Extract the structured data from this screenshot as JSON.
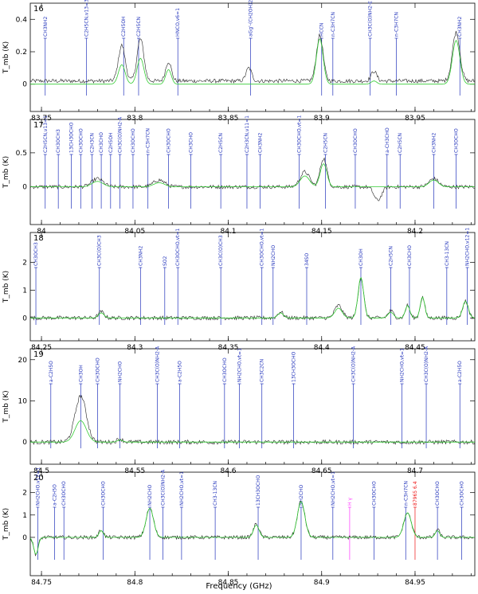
{
  "chart_data": {
    "type": "line",
    "xlabel": "Frequency (GHz)",
    "ylabel": "T_mb (K)",
    "panels": [
      {
        "number": "16",
        "xlim": [
          83.744,
          83.982
        ],
        "ylim": [
          -0.07,
          0.47
        ],
        "xticks": [
          83.75,
          83.8,
          83.85,
          83.9,
          83.95
        ],
        "xticklabels": [
          "83.75",
          "83.8",
          "83.85",
          "83.9",
          "83.95"
        ],
        "yticks": [
          0,
          0.2,
          0.4
        ],
        "yticklabels": [
          "0",
          "0.2",
          "0.4"
        ],
        "baseline_obs": 0.02,
        "baseline_model": 0.0,
        "peaks": [
          {
            "x": 83.793,
            "obs": 0.22,
            "model": 0.12,
            "w": 0.0018
          },
          {
            "x": 83.803,
            "obs": 0.26,
            "model": 0.16,
            "w": 0.0018
          },
          {
            "x": 83.818,
            "obs": 0.12,
            "model": 0.09,
            "w": 0.0015
          },
          {
            "x": 83.861,
            "obs": 0.08,
            "model": 0.0,
            "w": 0.0015
          },
          {
            "x": 83.899,
            "obs": 0.28,
            "model": 0.28,
            "w": 0.0018
          },
          {
            "x": 83.928,
            "obs": 0.06,
            "model": 0.02,
            "w": 0.0015
          },
          {
            "x": 83.972,
            "obs": 0.3,
            "model": 0.27,
            "w": 0.002
          }
        ],
        "markers": [
          {
            "x": 83.752,
            "label": "CH3NH2",
            "color": "blue"
          },
          {
            "x": 83.774,
            "label": "C2H5CN,v13=3",
            "color": "blue"
          },
          {
            "x": 83.794,
            "label": "C2H5OH",
            "color": "blue"
          },
          {
            "x": 83.802,
            "label": "C2H5CN",
            "color": "blue"
          },
          {
            "x": 83.823,
            "label": "HNCO,v6=1",
            "color": "blue"
          },
          {
            "x": 83.862,
            "label": "aGg'-(CH2OH)2",
            "color": "blue"
          },
          {
            "x": 83.9,
            "label": "HCCN",
            "color": "blue"
          },
          {
            "x": 83.906,
            "label": "n-C3H7CN",
            "color": "blue"
          },
          {
            "x": 83.926,
            "label": "CH3C(O)NH2-E",
            "color": "blue"
          },
          {
            "x": 83.94,
            "label": "n-C3H7CN",
            "color": "blue"
          },
          {
            "x": 83.974,
            "label": "CH3NH2",
            "color": "blue"
          }
        ]
      },
      {
        "number": "17",
        "xlim": [
          83.994,
          84.232
        ],
        "ylim": [
          -0.32,
          0.92
        ],
        "xticks": [
          84,
          84.05,
          84.1,
          84.15,
          84.2
        ],
        "xticklabels": [
          "84",
          "84.05",
          "84.1",
          "84.15",
          "84.2"
        ],
        "yticks": [
          0,
          0.5
        ],
        "yticklabels": [
          "0",
          "0.5"
        ],
        "baseline_obs": 0.0,
        "baseline_model": 0.0,
        "peaks": [
          {
            "x": 84.03,
            "obs": 0.12,
            "model": 0.08,
            "w": 0.003
          },
          {
            "x": 84.063,
            "obs": 0.1,
            "model": 0.06,
            "w": 0.003
          },
          {
            "x": 84.141,
            "obs": 0.22,
            "model": 0.16,
            "w": 0.0025
          },
          {
            "x": 84.151,
            "obs": 0.42,
            "model": 0.34,
            "w": 0.0018
          },
          {
            "x": 84.18,
            "obs": -0.2,
            "model": 0.0,
            "w": 0.002
          },
          {
            "x": 84.21,
            "obs": 0.12,
            "model": 0.1,
            "w": 0.0025
          }
        ],
        "markers": [
          {
            "x": 84.002,
            "label": "C2H5CN,v13=1",
            "color": "blue"
          },
          {
            "x": 84.009,
            "label": "CH3OCH3",
            "color": "blue"
          },
          {
            "x": 84.016,
            "label": "13CH3OCHO",
            "color": "blue"
          },
          {
            "x": 84.021,
            "label": "CH3OCHO",
            "color": "blue"
          },
          {
            "x": 84.027,
            "label": "C2H3CN",
            "color": "blue"
          },
          {
            "x": 84.032,
            "label": "CH3CHO",
            "color": "blue"
          },
          {
            "x": 84.037,
            "label": "C2H5OH",
            "color": "blue"
          },
          {
            "x": 84.042,
            "label": "CH3C(O)NH2-A",
            "color": "blue"
          },
          {
            "x": 84.049,
            "label": "CH3OCHO",
            "color": "blue"
          },
          {
            "x": 84.057,
            "label": "n-C3H7CN",
            "color": "blue"
          },
          {
            "x": 84.068,
            "label": "CH3OCHO",
            "color": "blue"
          },
          {
            "x": 84.08,
            "label": "CH3CHO",
            "color": "blue"
          },
          {
            "x": 84.096,
            "label": "C2H5CN",
            "color": "blue"
          },
          {
            "x": 84.11,
            "label": "C2H3CN,v11=1",
            "color": "blue"
          },
          {
            "x": 84.117,
            "label": "CH3NH2",
            "color": "blue"
          },
          {
            "x": 84.138,
            "label": "CH3OCHO,vt=1",
            "color": "blue"
          },
          {
            "x": 84.152,
            "label": "C2H5CN",
            "color": "blue"
          },
          {
            "x": 84.168,
            "label": "CH3OCHO",
            "color": "blue"
          },
          {
            "x": 84.185,
            "label": "a-CH3CHO",
            "color": "blue"
          },
          {
            "x": 84.192,
            "label": "C2H5CN",
            "color": "blue"
          },
          {
            "x": 84.21,
            "label": "CH3NH2",
            "color": "blue"
          },
          {
            "x": 84.222,
            "label": "CH3OCHO",
            "color": "blue"
          }
        ]
      },
      {
        "number": "18",
        "xlim": [
          84.244,
          84.482
        ],
        "ylim": [
          -0.25,
          2.9
        ],
        "xticks": [
          84.25,
          84.3,
          84.35,
          84.4,
          84.45
        ],
        "xticklabels": [
          "84.25",
          "84.3",
          "84.35",
          "84.4",
          "84.45"
        ],
        "yticks": [
          0,
          1,
          2
        ],
        "yticklabels": [
          "0",
          "1",
          "2"
        ],
        "baseline_obs": 0.0,
        "baseline_model": 0.0,
        "peaks": [
          {
            "x": 84.282,
            "obs": 0.22,
            "model": 0.18,
            "w": 0.0015
          },
          {
            "x": 84.378,
            "obs": 0.22,
            "model": 0.18,
            "w": 0.0015
          },
          {
            "x": 84.409,
            "obs": 0.45,
            "model": 0.35,
            "w": 0.002
          },
          {
            "x": 84.421,
            "obs": 1.45,
            "model": 1.45,
            "w": 0.0015
          },
          {
            "x": 84.437,
            "obs": 0.25,
            "model": 0.2,
            "w": 0.0015
          },
          {
            "x": 84.446,
            "obs": 0.45,
            "model": 0.45,
            "w": 0.0012
          },
          {
            "x": 84.454,
            "obs": 0.75,
            "model": 0.75,
            "w": 0.0012
          },
          {
            "x": 84.477,
            "obs": 0.6,
            "model": 0.6,
            "w": 0.0015
          }
        ],
        "markers": [
          {
            "x": 84.247,
            "label": "CH3OCH3",
            "color": "blue"
          },
          {
            "x": 84.281,
            "label": "CH3C(O)CH3",
            "color": "blue"
          },
          {
            "x": 84.303,
            "label": "CH3NH2",
            "color": "blue"
          },
          {
            "x": 84.316,
            "label": "SO2",
            "color": "blue"
          },
          {
            "x": 84.323,
            "label": "CH3OCHO,vt=1",
            "color": "blue"
          },
          {
            "x": 84.346,
            "label": "CH3C(O)CH3",
            "color": "blue"
          },
          {
            "x": 84.368,
            "label": "CH3OCHO,vt=1",
            "color": "blue"
          },
          {
            "x": 84.374,
            "label": "NH2CHO",
            "color": "blue"
          },
          {
            "x": 84.392,
            "label": "34SO",
            "color": "blue"
          },
          {
            "x": 84.421,
            "label": "CH3OH",
            "color": "blue"
          },
          {
            "x": 84.437,
            "label": "C2H5CN",
            "color": "blue"
          },
          {
            "x": 84.447,
            "label": "CH3CHO",
            "color": "blue"
          },
          {
            "x": 84.467,
            "label": "CH3-13CN",
            "color": "blue"
          },
          {
            "x": 84.478,
            "label": "NH2CHO,v12=1",
            "color": "blue"
          }
        ]
      },
      {
        "number": "19",
        "xlim": [
          84.494,
          84.732
        ],
        "ylim": [
          -1.5,
          21.5
        ],
        "xticks": [
          84.5,
          84.55,
          84.6,
          84.65,
          84.7
        ],
        "xticklabels": [
          "84.5",
          "84.55",
          "84.6",
          "84.65",
          "84.7"
        ],
        "yticks": [
          0,
          10,
          20
        ],
        "yticklabels": [
          "0",
          "10",
          "20"
        ],
        "baseline_obs": 0.0,
        "baseline_model": 0.0,
        "peaks": [
          {
            "x": 84.521,
            "obs": 11.2,
            "model": 5.2,
            "w": 0.003
          },
          {
            "x": 84.542,
            "obs": 0.8,
            "model": 0.5,
            "w": 0.0015
          }
        ],
        "markers": [
          {
            "x": 84.505,
            "label": "a-C2H5O",
            "color": "blue"
          },
          {
            "x": 84.521,
            "label": "CH3OH",
            "color": "blue"
          },
          {
            "x": 84.53,
            "label": "CH3OCHO",
            "color": "blue"
          },
          {
            "x": 84.542,
            "label": "NH2CHO",
            "color": "blue"
          },
          {
            "x": 84.562,
            "label": "CH3C(O)NH2-A",
            "color": "blue"
          },
          {
            "x": 84.574,
            "label": "a-C2H5O",
            "color": "blue"
          },
          {
            "x": 84.598,
            "label": "CH3OCHO",
            "color": "blue"
          },
          {
            "x": 84.606,
            "label": "NH2CHO,vt=1",
            "color": "blue"
          },
          {
            "x": 84.618,
            "label": "CH3C2CN",
            "color": "blue"
          },
          {
            "x": 84.635,
            "label": "13CH3OCHO",
            "color": "blue"
          },
          {
            "x": 84.667,
            "label": "CH3C(O)NH2-A",
            "color": "blue"
          },
          {
            "x": 84.693,
            "label": "NH2CHO,vt=1",
            "color": "blue"
          },
          {
            "x": 84.706,
            "label": "CH3C(O)NH2-A",
            "color": "blue"
          },
          {
            "x": 84.724,
            "label": "a-C2H5O",
            "color": "blue"
          }
        ]
      },
      {
        "number": "20",
        "xlim": [
          84.744,
          84.982
        ],
        "ylim": [
          -1.0,
          2.7
        ],
        "xticks": [
          84.75,
          84.8,
          84.85,
          84.9,
          84.95
        ],
        "xticklabels": [
          "84.75",
          "84.8",
          "84.85",
          "84.9",
          "84.95"
        ],
        "yticks": [
          0,
          1,
          2
        ],
        "yticklabels": [
          "0",
          "1",
          "2"
        ],
        "baseline_obs": 0.0,
        "baseline_model": 0.0,
        "peaks": [
          {
            "x": 84.747,
            "obs": -0.75,
            "model": -0.75,
            "w": 0.0012
          },
          {
            "x": 84.782,
            "obs": 0.35,
            "model": 0.3,
            "w": 0.0012
          },
          {
            "x": 84.808,
            "obs": 1.3,
            "model": 1.3,
            "w": 0.002
          },
          {
            "x": 84.865,
            "obs": 0.6,
            "model": 0.55,
            "w": 0.0015
          },
          {
            "x": 84.889,
            "obs": 1.6,
            "model": 1.6,
            "w": 0.002
          },
          {
            "x": 84.946,
            "obs": 1.1,
            "model": 1.1,
            "w": 0.002
          },
          {
            "x": 84.962,
            "obs": 0.35,
            "model": 0.3,
            "w": 0.0012
          }
        ],
        "markers": [
          {
            "x": 84.748,
            "label": "NH2CHO,v12=1",
            "color": "blue"
          },
          {
            "x": 84.757,
            "label": "a-C2H5O",
            "color": "blue"
          },
          {
            "x": 84.762,
            "label": "CH3OCHO",
            "color": "blue"
          },
          {
            "x": 84.783,
            "label": "CH3OCHO",
            "color": "blue"
          },
          {
            "x": 84.808,
            "label": "NH2CHO",
            "color": "blue"
          },
          {
            "x": 84.815,
            "label": "CH3C(O)NH2-A",
            "color": "blue"
          },
          {
            "x": 84.825,
            "label": "NH2CHO,vt=1",
            "color": "blue"
          },
          {
            "x": 84.843,
            "label": "CH3-13CN",
            "color": "blue"
          },
          {
            "x": 84.866,
            "label": "13CH3OCHO",
            "color": "blue"
          },
          {
            "x": 84.889,
            "label": "NH2CHO",
            "color": "blue"
          },
          {
            "x": 84.906,
            "label": "NH2CHO,vt=1",
            "color": "blue"
          },
          {
            "x": 84.915,
            "label": "H γ",
            "color": "magenta"
          },
          {
            "x": 84.928,
            "label": "CH3OCHO",
            "color": "blue"
          },
          {
            "x": 84.945,
            "label": "n-C3H7CN",
            "color": "blue"
          },
          {
            "x": 84.95,
            "label": "87965 6.4",
            "color": "red"
          },
          {
            "x": 84.962,
            "label": "CH3OCHO",
            "color": "blue"
          },
          {
            "x": 84.975,
            "label": "CH3OCHO",
            "color": "blue"
          }
        ]
      }
    ]
  }
}
